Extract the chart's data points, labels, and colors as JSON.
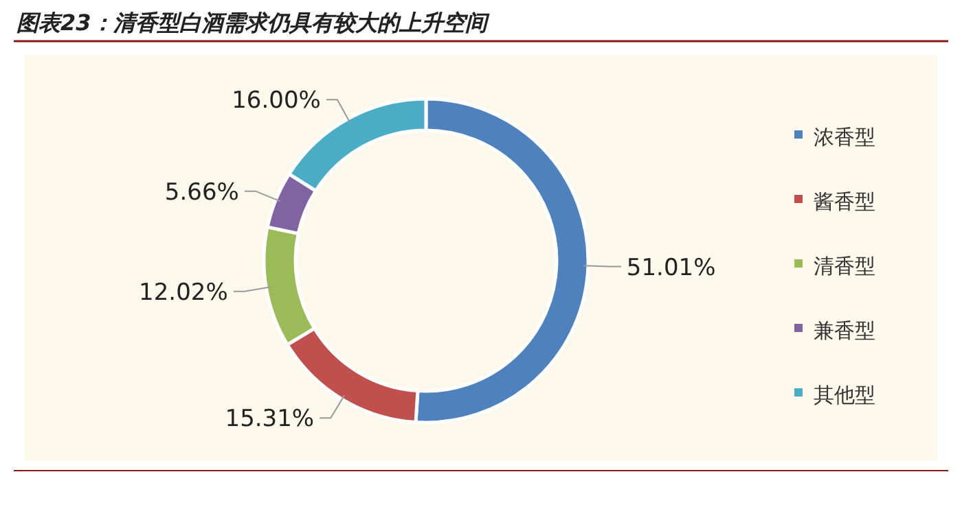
{
  "chart_data": {
    "type": "donut",
    "title": "图表23：清香型白酒需求仍具有较大的上升空间",
    "categories": [
      "浓香型",
      "酱香型",
      "清香型",
      "兼香型",
      "其他型"
    ],
    "values": [
      51.01,
      15.31,
      12.02,
      5.66,
      16.0
    ],
    "colors": [
      "#4f81bd",
      "#c0504d",
      "#9bbb59",
      "#8064a2",
      "#4bacc6"
    ],
    "value_labels": [
      "51.01%",
      "15.31%",
      "12.02%",
      "5.66%",
      "16.00%"
    ],
    "legend": "right"
  }
}
